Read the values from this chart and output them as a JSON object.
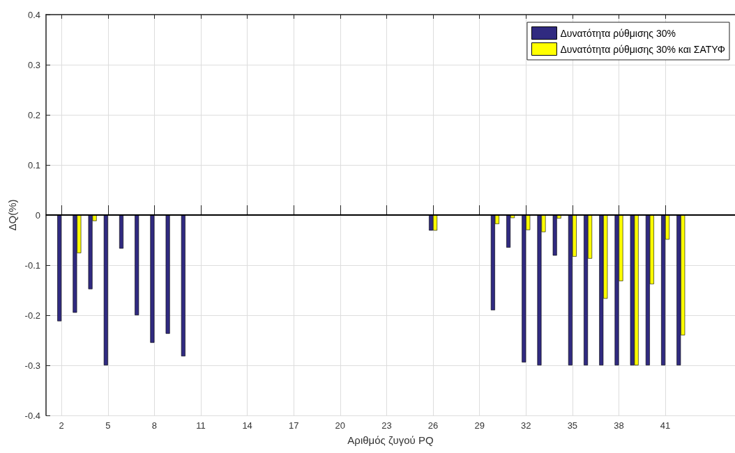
{
  "chart_data": {
    "type": "bar",
    "xlabel": "Αριθμός ζυγού PQ",
    "ylabel": "ΔQ(%)",
    "x": [
      2,
      3,
      4,
      5,
      6,
      7,
      8,
      9,
      10,
      26,
      30,
      31,
      32,
      33,
      34,
      35,
      36,
      37,
      38,
      39,
      40,
      41,
      42
    ],
    "series": [
      {
        "name": "Δυνατότητα ρύθμισης 30%",
        "color": "#302a80",
        "values": [
          -0.212,
          -0.195,
          -0.148,
          -0.3,
          -0.067,
          -0.2,
          -0.255,
          -0.237,
          -0.282,
          -0.031,
          -0.19,
          -0.065,
          -0.294,
          -0.3,
          -0.081,
          -0.3,
          -0.3,
          -0.3,
          -0.3,
          -0.3,
          -0.3,
          -0.3,
          -0.3
        ]
      },
      {
        "name": "Δυνατότητα ρύθμισης 30% και ΣΑΤΥΦ",
        "color": "#ffff00",
        "values": [
          null,
          -0.076,
          -0.012,
          null,
          null,
          null,
          null,
          null,
          null,
          -0.031,
          -0.018,
          -0.006,
          -0.03,
          -0.034,
          -0.007,
          -0.083,
          -0.087,
          -0.167,
          -0.132,
          -0.3,
          -0.138,
          -0.049,
          -0.24
        ]
      }
    ],
    "xlim": [
      1,
      45.5
    ],
    "xticks": [
      2,
      5,
      8,
      11,
      14,
      17,
      20,
      23,
      26,
      29,
      32,
      35,
      38,
      41
    ],
    "ylim": [
      -0.4,
      0.4
    ],
    "yticks": [
      -0.4,
      -0.3,
      -0.2,
      -0.1,
      0,
      0.1,
      0.2,
      0.3,
      0.4
    ],
    "ref_lines": [
      {
        "axis": "y",
        "value": 0,
        "color": "#000000"
      }
    ],
    "grid": true,
    "legend": "top right"
  }
}
